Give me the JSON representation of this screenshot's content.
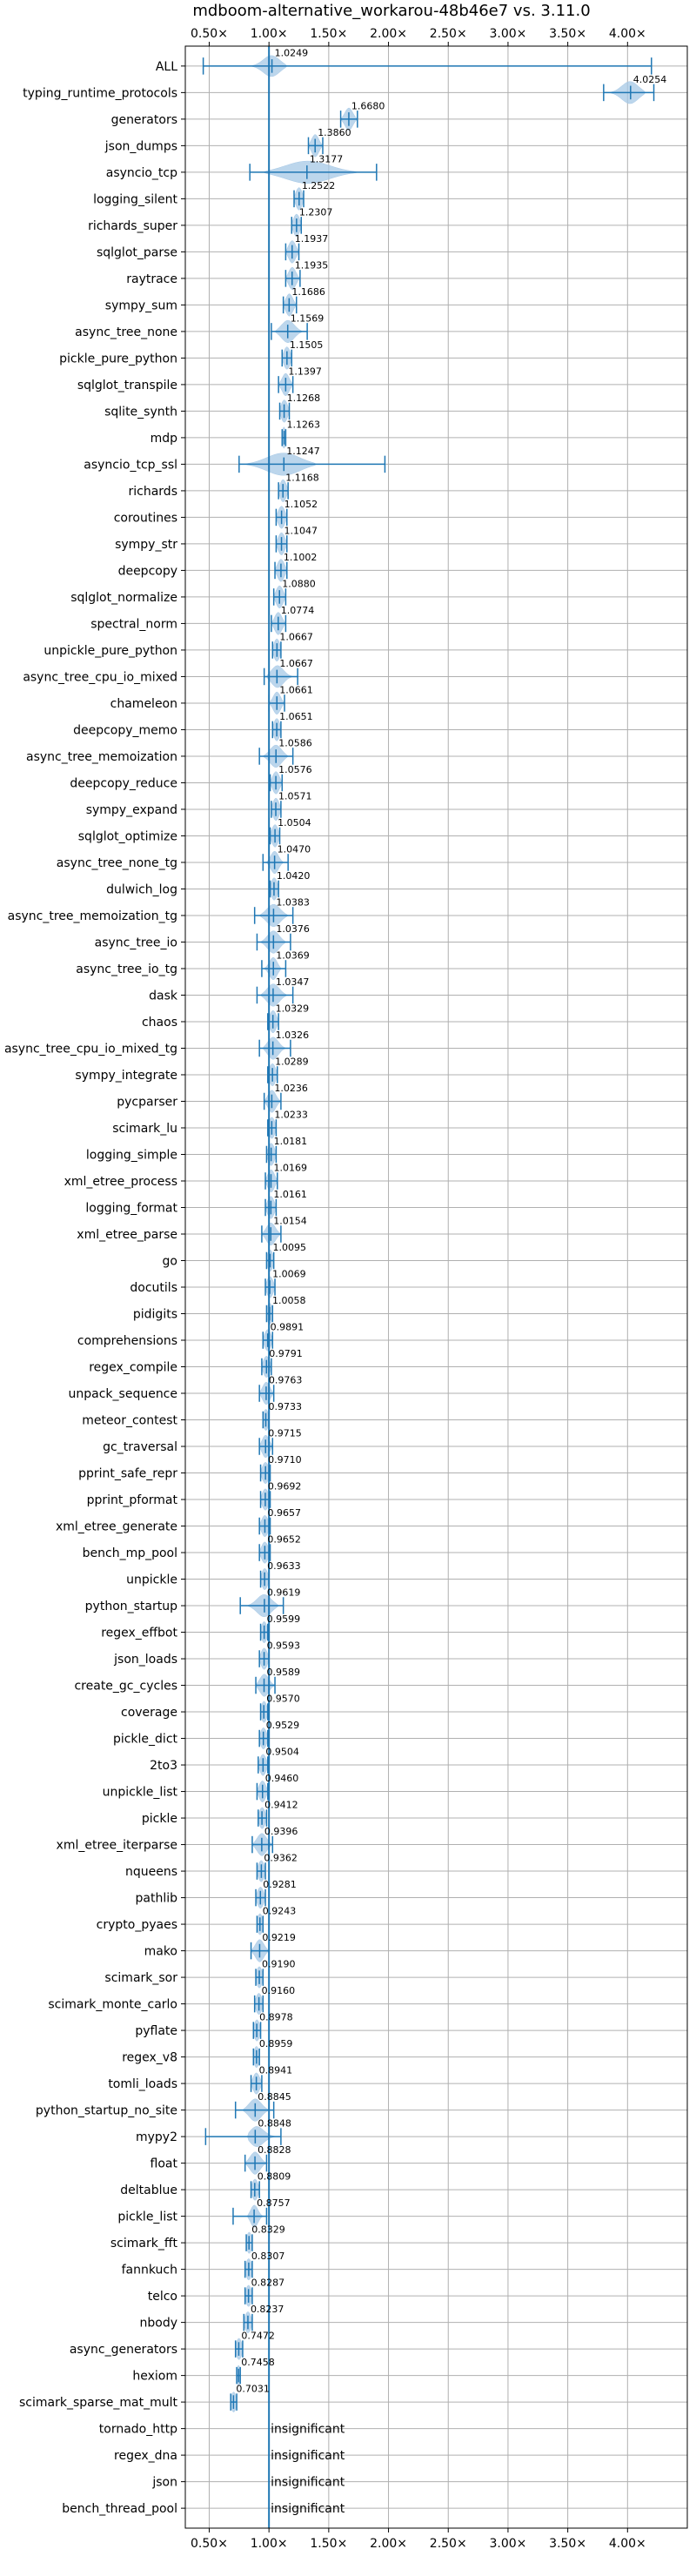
{
  "chart_data": {
    "type": "violin",
    "title": "mdboom-alternative_workarou-48b46e7 vs. 3.11.0",
    "xlim": [
      0.3,
      4.5
    ],
    "x_ticks": [
      0.5,
      1.0,
      1.5,
      2.0,
      2.5,
      3.0,
      3.5,
      4.0
    ],
    "x_tick_labels": [
      "0.50×",
      "1.00×",
      "1.50×",
      "2.00×",
      "2.50×",
      "3.00×",
      "3.50×",
      "4.00×"
    ],
    "reference_line": 1.0,
    "grid": true,
    "colors": {
      "violin": "#a6c8e6",
      "line": "#1f77b4",
      "grid": "#b0b0b0"
    },
    "benchmarks": [
      {
        "name": "ALL",
        "label": "1.0249",
        "median": 1.0249,
        "min": 0.45,
        "max": 4.2,
        "w": 0.12,
        "wide": true,
        "mass": [
          0.85,
          1.15
        ]
      },
      {
        "name": "typing_runtime_protocols",
        "label": "4.0254",
        "median": 4.0254,
        "min": 3.8,
        "max": 4.22,
        "w": 0.28,
        "wide": true,
        "mass": [
          3.85,
          4.15
        ]
      },
      {
        "name": "generators",
        "label": "1.6680",
        "median": 1.668,
        "min": 1.6,
        "max": 1.74,
        "w": 0.18
      },
      {
        "name": "json_dumps",
        "label": "1.3860",
        "median": 1.386,
        "min": 1.33,
        "max": 1.45,
        "w": 0.16
      },
      {
        "name": "asyncio_tcp",
        "label": "1.3177",
        "median": 1.3177,
        "min": 0.84,
        "max": 1.9,
        "w": 0.5,
        "wide": true,
        "mass": [
          0.95,
          1.75
        ]
      },
      {
        "name": "logging_silent",
        "label": "1.2522",
        "median": 1.2522,
        "min": 1.21,
        "max": 1.29,
        "w": 0.14
      },
      {
        "name": "richards_super",
        "label": "1.2307",
        "median": 1.2307,
        "min": 1.19,
        "max": 1.27,
        "w": 0.14
      },
      {
        "name": "sqlglot_parse",
        "label": "1.1937",
        "median": 1.1937,
        "min": 1.14,
        "max": 1.25,
        "w": 0.15
      },
      {
        "name": "raytrace",
        "label": "1.1935",
        "median": 1.1935,
        "min": 1.14,
        "max": 1.26,
        "w": 0.15
      },
      {
        "name": "sympy_sum",
        "label": "1.1686",
        "median": 1.1686,
        "min": 1.12,
        "max": 1.23,
        "w": 0.15
      },
      {
        "name": "async_tree_none",
        "label": "1.1569",
        "median": 1.1569,
        "min": 1.02,
        "max": 1.32,
        "w": 0.22,
        "wide": true,
        "mass": [
          1.05,
          1.28
        ]
      },
      {
        "name": "pickle_pure_python",
        "label": "1.1505",
        "median": 1.1505,
        "min": 1.11,
        "max": 1.19,
        "w": 0.14
      },
      {
        "name": "sqlglot_transpile",
        "label": "1.1397",
        "median": 1.1397,
        "min": 1.08,
        "max": 1.2,
        "w": 0.15
      },
      {
        "name": "sqlite_synth",
        "label": "1.1268",
        "median": 1.1268,
        "min": 1.09,
        "max": 1.17,
        "w": 0.14
      },
      {
        "name": "mdp",
        "label": "1.1263",
        "median": 1.1263,
        "min": 1.11,
        "max": 1.14,
        "w": 0.12
      },
      {
        "name": "asyncio_tcp_ssl",
        "label": "1.1247",
        "median": 1.1247,
        "min": 0.75,
        "max": 1.97,
        "w": 0.48,
        "wide": true,
        "mass": [
          0.8,
          1.4
        ]
      },
      {
        "name": "richards",
        "label": "1.1168",
        "median": 1.1168,
        "min": 1.08,
        "max": 1.16,
        "w": 0.14
      },
      {
        "name": "coroutines",
        "label": "1.1052",
        "median": 1.1052,
        "min": 1.06,
        "max": 1.15,
        "w": 0.14
      },
      {
        "name": "sympy_str",
        "label": "1.1047",
        "median": 1.1047,
        "min": 1.06,
        "max": 1.15,
        "w": 0.14
      },
      {
        "name": "deepcopy",
        "label": "1.1002",
        "median": 1.1002,
        "min": 1.05,
        "max": 1.15,
        "w": 0.14
      },
      {
        "name": "sqlglot_normalize",
        "label": "1.0880",
        "median": 1.088,
        "min": 1.04,
        "max": 1.14,
        "w": 0.14
      },
      {
        "name": "spectral_norm",
        "label": "1.0774",
        "median": 1.0774,
        "min": 1.02,
        "max": 1.14,
        "w": 0.14
      },
      {
        "name": "unpickle_pure_python",
        "label": "1.0667",
        "median": 1.0667,
        "min": 1.03,
        "max": 1.1,
        "w": 0.13
      },
      {
        "name": "async_tree_cpu_io_mixed",
        "label": "1.0667",
        "median": 1.0667,
        "min": 0.96,
        "max": 1.24,
        "w": 0.2,
        "wide": true,
        "mass": [
          0.98,
          1.2
        ]
      },
      {
        "name": "chameleon",
        "label": "1.0661",
        "median": 1.0661,
        "min": 1.0,
        "max": 1.13,
        "w": 0.14
      },
      {
        "name": "deepcopy_memo",
        "label": "1.0651",
        "median": 1.0651,
        "min": 1.03,
        "max": 1.1,
        "w": 0.13
      },
      {
        "name": "async_tree_memoization",
        "label": "1.0586",
        "median": 1.0586,
        "min": 0.92,
        "max": 1.2,
        "w": 0.2,
        "wide": true,
        "mass": [
          0.95,
          1.16
        ]
      },
      {
        "name": "deepcopy_reduce",
        "label": "1.0576",
        "median": 1.0576,
        "min": 1.01,
        "max": 1.11,
        "w": 0.14
      },
      {
        "name": "sympy_expand",
        "label": "1.0571",
        "median": 1.0571,
        "min": 1.02,
        "max": 1.1,
        "w": 0.13
      },
      {
        "name": "sqlglot_optimize",
        "label": "1.0504",
        "median": 1.0504,
        "min": 1.01,
        "max": 1.09,
        "w": 0.13
      },
      {
        "name": "async_tree_none_tg",
        "label": "1.0470",
        "median": 1.047,
        "min": 0.95,
        "max": 1.16,
        "w": 0.18,
        "wide": true,
        "mass": [
          0.98,
          1.12
        ]
      },
      {
        "name": "dulwich_log",
        "label": "1.0420",
        "median": 1.042,
        "min": 1.01,
        "max": 1.08,
        "w": 0.13
      },
      {
        "name": "async_tree_memoization_tg",
        "label": "1.0383",
        "median": 1.0383,
        "min": 0.88,
        "max": 1.2,
        "w": 0.2,
        "wide": true,
        "mass": [
          0.92,
          1.16
        ]
      },
      {
        "name": "async_tree_io",
        "label": "1.0376",
        "median": 1.0376,
        "min": 0.9,
        "max": 1.18,
        "w": 0.2,
        "wide": true,
        "mass": [
          0.93,
          1.14
        ]
      },
      {
        "name": "async_tree_io_tg",
        "label": "1.0369",
        "median": 1.0369,
        "min": 0.94,
        "max": 1.14,
        "w": 0.17,
        "wide": true,
        "mass": [
          0.96,
          1.1
        ]
      },
      {
        "name": "dask",
        "label": "1.0347",
        "median": 1.0347,
        "min": 0.9,
        "max": 1.2,
        "w": 0.18,
        "wide": true,
        "mass": [
          0.93,
          1.15
        ]
      },
      {
        "name": "chaos",
        "label": "1.0329",
        "median": 1.0329,
        "min": 0.99,
        "max": 1.08,
        "w": 0.13
      },
      {
        "name": "async_tree_cpu_io_mixed_tg",
        "label": "1.0326",
        "median": 1.0326,
        "min": 0.92,
        "max": 1.18,
        "w": 0.2,
        "wide": true,
        "mass": [
          0.95,
          1.14
        ]
      },
      {
        "name": "sympy_integrate",
        "label": "1.0289",
        "median": 1.0289,
        "min": 0.99,
        "max": 1.07,
        "w": 0.13
      },
      {
        "name": "pycparser",
        "label": "1.0236",
        "median": 1.0236,
        "min": 0.96,
        "max": 1.1,
        "w": 0.15
      },
      {
        "name": "scimark_lu",
        "label": "1.0233",
        "median": 1.0233,
        "min": 0.99,
        "max": 1.06,
        "w": 0.12
      },
      {
        "name": "logging_simple",
        "label": "1.0181",
        "median": 1.0181,
        "min": 0.98,
        "max": 1.06,
        "w": 0.13
      },
      {
        "name": "xml_etree_process",
        "label": "1.0169",
        "median": 1.0169,
        "min": 0.97,
        "max": 1.07,
        "w": 0.13
      },
      {
        "name": "logging_format",
        "label": "1.0161",
        "median": 1.0161,
        "min": 0.97,
        "max": 1.06,
        "w": 0.13
      },
      {
        "name": "xml_etree_parse",
        "label": "1.0154",
        "median": 1.0154,
        "min": 0.94,
        "max": 1.1,
        "w": 0.15
      },
      {
        "name": "go",
        "label": "1.0095",
        "median": 1.0095,
        "min": 0.98,
        "max": 1.04,
        "w": 0.12
      },
      {
        "name": "docutils",
        "label": "1.0069",
        "median": 1.0069,
        "min": 0.97,
        "max": 1.05,
        "w": 0.12
      },
      {
        "name": "pidigits",
        "label": "1.0058",
        "median": 1.0058,
        "min": 0.98,
        "max": 1.03,
        "w": 0.12
      },
      {
        "name": "comprehensions",
        "label": "0.9891",
        "median": 0.9891,
        "min": 0.95,
        "max": 1.03,
        "w": 0.12
      },
      {
        "name": "regex_compile",
        "label": "0.9791",
        "median": 0.9791,
        "min": 0.94,
        "max": 1.02,
        "w": 0.12
      },
      {
        "name": "unpack_sequence",
        "label": "0.9763",
        "median": 0.9763,
        "min": 0.92,
        "max": 1.04,
        "w": 0.14
      },
      {
        "name": "meteor_contest",
        "label": "0.9733",
        "median": 0.9733,
        "min": 0.95,
        "max": 1.0,
        "w": 0.12
      },
      {
        "name": "gc_traversal",
        "label": "0.9715",
        "median": 0.9715,
        "min": 0.92,
        "max": 1.03,
        "w": 0.14
      },
      {
        "name": "pprint_safe_repr",
        "label": "0.9710",
        "median": 0.971,
        "min": 0.93,
        "max": 1.01,
        "w": 0.12
      },
      {
        "name": "pprint_pformat",
        "label": "0.9692",
        "median": 0.9692,
        "min": 0.93,
        "max": 1.01,
        "w": 0.12
      },
      {
        "name": "xml_etree_generate",
        "label": "0.9657",
        "median": 0.9657,
        "min": 0.92,
        "max": 1.01,
        "w": 0.12
      },
      {
        "name": "bench_mp_pool",
        "label": "0.9652",
        "median": 0.9652,
        "min": 0.92,
        "max": 1.01,
        "w": 0.12
      },
      {
        "name": "unpickle",
        "label": "0.9633",
        "median": 0.9633,
        "min": 0.93,
        "max": 1.0,
        "w": 0.12
      },
      {
        "name": "python_startup",
        "label": "0.9619",
        "median": 0.9619,
        "min": 0.76,
        "max": 1.12,
        "w": 0.2,
        "wide": true,
        "mass": [
          0.82,
          1.08
        ]
      },
      {
        "name": "regex_effbot",
        "label": "0.9599",
        "median": 0.9599,
        "min": 0.93,
        "max": 0.99,
        "w": 0.12
      },
      {
        "name": "json_loads",
        "label": "0.9593",
        "median": 0.9593,
        "min": 0.92,
        "max": 1.0,
        "w": 0.12
      },
      {
        "name": "create_gc_cycles",
        "label": "0.9589",
        "median": 0.9589,
        "min": 0.89,
        "max": 1.05,
        "w": 0.15
      },
      {
        "name": "coverage",
        "label": "0.9570",
        "median": 0.957,
        "min": 0.93,
        "max": 0.99,
        "w": 0.12
      },
      {
        "name": "pickle_dict",
        "label": "0.9529",
        "median": 0.9529,
        "min": 0.92,
        "max": 0.99,
        "w": 0.12
      },
      {
        "name": "2to3",
        "label": "0.9504",
        "median": 0.9504,
        "min": 0.91,
        "max": 0.99,
        "w": 0.12
      },
      {
        "name": "unpickle_list",
        "label": "0.9460",
        "median": 0.946,
        "min": 0.9,
        "max": 0.99,
        "w": 0.12
      },
      {
        "name": "pickle",
        "label": "0.9412",
        "median": 0.9412,
        "min": 0.91,
        "max": 0.98,
        "w": 0.12
      },
      {
        "name": "xml_etree_iterparse",
        "label": "0.9396",
        "median": 0.9396,
        "min": 0.86,
        "max": 1.03,
        "w": 0.15
      },
      {
        "name": "nqueens",
        "label": "0.9362",
        "median": 0.9362,
        "min": 0.9,
        "max": 0.97,
        "w": 0.12
      },
      {
        "name": "pathlib",
        "label": "0.9281",
        "median": 0.9281,
        "min": 0.89,
        "max": 0.97,
        "w": 0.12
      },
      {
        "name": "crypto_pyaes",
        "label": "0.9243",
        "median": 0.9243,
        "min": 0.9,
        "max": 0.95,
        "w": 0.12
      },
      {
        "name": "mako",
        "label": "0.9219",
        "median": 0.9219,
        "min": 0.85,
        "max": 1.0,
        "w": 0.14
      },
      {
        "name": "scimark_sor",
        "label": "0.9190",
        "median": 0.919,
        "min": 0.89,
        "max": 0.95,
        "w": 0.12
      },
      {
        "name": "scimark_monte_carlo",
        "label": "0.9160",
        "median": 0.916,
        "min": 0.88,
        "max": 0.95,
        "w": 0.12
      },
      {
        "name": "pyflate",
        "label": "0.8978",
        "median": 0.8978,
        "min": 0.87,
        "max": 0.93,
        "w": 0.12
      },
      {
        "name": "regex_v8",
        "label": "0.8959",
        "median": 0.8959,
        "min": 0.87,
        "max": 0.92,
        "w": 0.12
      },
      {
        "name": "tomli_loads",
        "label": "0.8941",
        "median": 0.8941,
        "min": 0.85,
        "max": 0.94,
        "w": 0.12
      },
      {
        "name": "python_startup_no_site",
        "label": "0.8845",
        "median": 0.8845,
        "min": 0.72,
        "max": 1.04,
        "w": 0.18,
        "wide": true,
        "mass": [
          0.78,
          1.0
        ]
      },
      {
        "name": "mypy2",
        "label": "0.8848",
        "median": 0.8848,
        "min": 0.47,
        "max": 1.1,
        "w": 0.22,
        "wide": true,
        "mass": [
          0.82,
          1.08
        ]
      },
      {
        "name": "float",
        "label": "0.8828",
        "median": 0.8828,
        "min": 0.8,
        "max": 0.98,
        "w": 0.15
      },
      {
        "name": "deltablue",
        "label": "0.8809",
        "median": 0.8809,
        "min": 0.85,
        "max": 0.92,
        "w": 0.12
      },
      {
        "name": "pickle_list",
        "label": "0.8757",
        "median": 0.8757,
        "min": 0.7,
        "max": 0.98,
        "w": 0.18,
        "wide": true,
        "mass": [
          0.82,
          0.95
        ]
      },
      {
        "name": "scimark_fft",
        "label": "0.8329",
        "median": 0.8329,
        "min": 0.81,
        "max": 0.86,
        "w": 0.12
      },
      {
        "name": "fannkuch",
        "label": "0.8307",
        "median": 0.8307,
        "min": 0.8,
        "max": 0.86,
        "w": 0.12
      },
      {
        "name": "telco",
        "label": "0.8287",
        "median": 0.8287,
        "min": 0.8,
        "max": 0.86,
        "w": 0.12
      },
      {
        "name": "nbody",
        "label": "0.8237",
        "median": 0.8237,
        "min": 0.79,
        "max": 0.86,
        "w": 0.12
      },
      {
        "name": "async_generators",
        "label": "0.7472",
        "median": 0.7472,
        "min": 0.72,
        "max": 0.78,
        "w": 0.12
      },
      {
        "name": "hexiom",
        "label": "0.7458",
        "median": 0.7458,
        "min": 0.73,
        "max": 0.76,
        "w": 0.11
      },
      {
        "name": "scimark_sparse_mat_mult",
        "label": "0.7031",
        "median": 0.7031,
        "min": 0.68,
        "max": 0.73,
        "w": 0.11
      },
      {
        "name": "tornado_http",
        "label": "insignificant",
        "insignificant": true
      },
      {
        "name": "regex_dna",
        "label": "insignificant",
        "insignificant": true
      },
      {
        "name": "json",
        "label": "insignificant",
        "insignificant": true
      },
      {
        "name": "bench_thread_pool",
        "label": "insignificant",
        "insignificant": true
      }
    ]
  }
}
